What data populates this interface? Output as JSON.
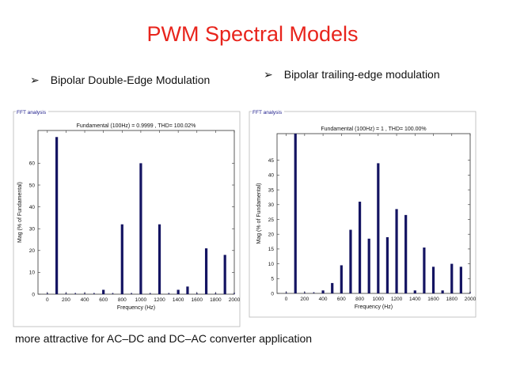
{
  "slide": {
    "title": "PWM Spectral Models",
    "bullet_left": "Bipolar Double-Edge Modulation",
    "bullet_right": "Bipolar trailing-edge modulation",
    "footer": "more attractive for AC–DC and DC–AC converter application",
    "title_color": "#e8241c",
    "bar_color": "#141462"
  },
  "chart_data": [
    {
      "type": "bar",
      "panel_label": "FFT analysis",
      "title": "Fundamental (100Hz) = 0.9999 , THD= 100.02%",
      "xlabel": "Frequency (Hz)",
      "ylabel": "Mag (% of Fundamental)",
      "xlim": [
        -100,
        2000
      ],
      "ylim": [
        0,
        75
      ],
      "xticks": [
        0,
        200,
        400,
        600,
        800,
        1000,
        1200,
        1400,
        1600,
        1800,
        2000
      ],
      "yticks": [
        0,
        10,
        20,
        30,
        40,
        50,
        60
      ],
      "x": [
        100,
        600,
        800,
        1000,
        1200,
        1400,
        1500,
        1700,
        1900
      ],
      "values": [
        72,
        2,
        32,
        60,
        32,
        2,
        3.5,
        21,
        18
      ],
      "grid": false
    },
    {
      "type": "bar",
      "panel_label": "FFT analysis",
      "title": "Fundamental (100Hz) = 1 , THD= 100.00%",
      "xlabel": "Frequency (Hz)",
      "ylabel": "Mag (% of Fundamental)",
      "xlim": [
        -100,
        2000
      ],
      "ylim": [
        0,
        54
      ],
      "xticks": [
        0,
        200,
        400,
        600,
        800,
        1000,
        1200,
        1400,
        1600,
        1800,
        2000
      ],
      "yticks": [
        0,
        5,
        10,
        15,
        20,
        25,
        30,
        35,
        40,
        45
      ],
      "x": [
        100,
        400,
        500,
        600,
        700,
        800,
        900,
        1000,
        1100,
        1200,
        1300,
        1400,
        1500,
        1600,
        1700,
        1800,
        1900
      ],
      "values": [
        54,
        1,
        3.5,
        9.5,
        21.5,
        31,
        18.5,
        44,
        19,
        28.5,
        26.5,
        1,
        15.5,
        9,
        1,
        10,
        9
      ],
      "grid": false
    }
  ]
}
